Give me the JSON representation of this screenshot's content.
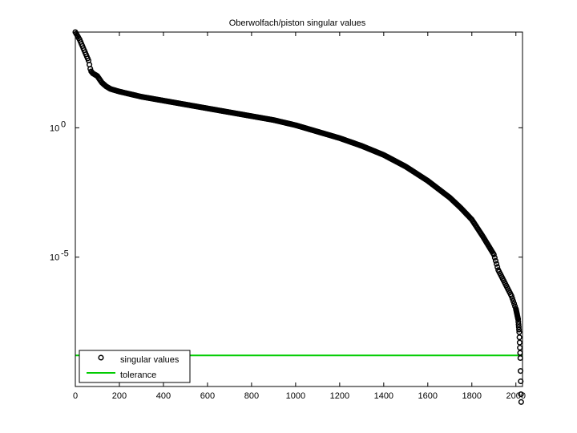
{
  "chart_data": {
    "type": "scatter",
    "title": "Oberwolfach/piston singular values",
    "xlabel": "",
    "ylabel": "",
    "xlim": [
      0,
      2030
    ],
    "ylim_log10": [
      -10,
      3.7
    ],
    "yscale": "log",
    "grid": false,
    "legend_placement": "bottom-left",
    "x_ticks": [
      0,
      200,
      400,
      600,
      800,
      1000,
      1200,
      1400,
      1600,
      1800,
      2000
    ],
    "x_tick_labels": [
      "0",
      "200",
      "400",
      "600",
      "800",
      "1000",
      "1200",
      "1400",
      "1600",
      "1800",
      "2000"
    ],
    "y_ticks_log10": [
      0,
      -5
    ],
    "y_tick_labels": [
      {
        "base": "10",
        "exp": "0"
      },
      {
        "base": "10",
        "exp": "-5"
      }
    ],
    "series": [
      {
        "name": "singular values",
        "marker": "circle-open",
        "color": "#000000",
        "count": 2025,
        "anchors_x": [
          0,
          20,
          40,
          60,
          70,
          80,
          100,
          120,
          140,
          160,
          200,
          300,
          400,
          500,
          600,
          700,
          800,
          900,
          1000,
          1100,
          1200,
          1300,
          1400,
          1500,
          1600,
          1700,
          1750,
          1800,
          1850,
          1900,
          1920,
          1950,
          1980,
          2000,
          2010,
          2015,
          2018,
          2020,
          2021,
          2022,
          2023,
          2024
        ],
        "anchors_log10_y": [
          3.7,
          3.4,
          3.0,
          2.6,
          2.2,
          2.1,
          2.0,
          1.75,
          1.6,
          1.5,
          1.4,
          1.2,
          1.05,
          0.9,
          0.75,
          0.6,
          0.45,
          0.3,
          0.1,
          -0.15,
          -0.4,
          -0.7,
          -1.05,
          -1.5,
          -2.05,
          -2.7,
          -3.1,
          -3.55,
          -4.2,
          -4.9,
          -5.5,
          -6.0,
          -6.5,
          -7.0,
          -7.4,
          -7.9,
          -8.5,
          -8.9,
          -9.4,
          -9.8,
          -10.3,
          -10.6
        ]
      },
      {
        "name": "tolerance",
        "line": true,
        "color": "#00cc00",
        "log10_y": -8.8
      }
    ]
  }
}
